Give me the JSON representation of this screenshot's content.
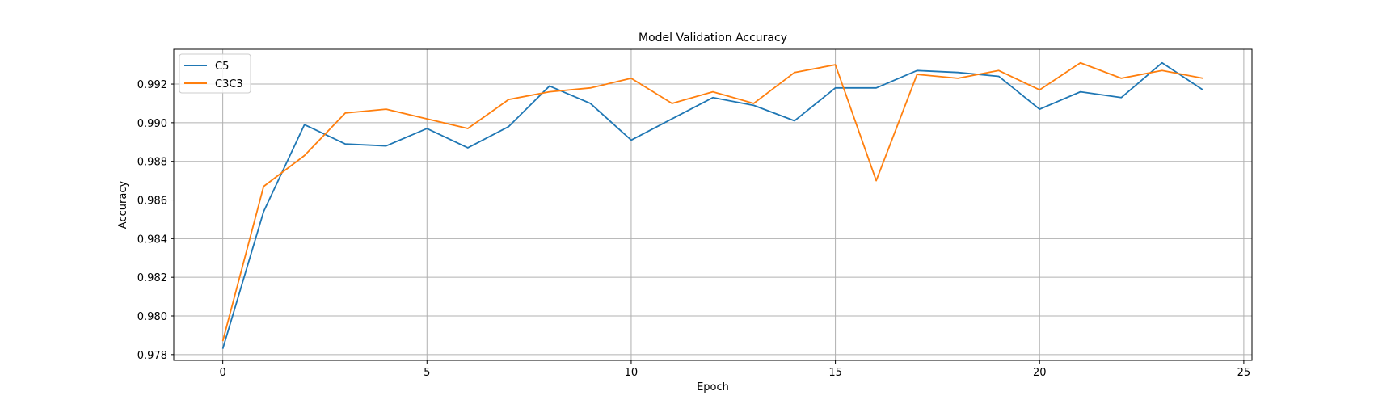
{
  "chart_data": {
    "type": "line",
    "title": "Model Validation Accuracy",
    "xlabel": "Epoch",
    "ylabel": "Accuracy",
    "xlim": [
      -1.2,
      25.2
    ],
    "ylim": [
      0.9777,
      0.9938
    ],
    "xticks": [
      0,
      5,
      10,
      15,
      20,
      25
    ],
    "xtick_labels": [
      "0",
      "5",
      "10",
      "15",
      "20",
      "25"
    ],
    "yticks": [
      0.978,
      0.98,
      0.982,
      0.984,
      0.986,
      0.988,
      0.99,
      0.992
    ],
    "ytick_labels": [
      "0.978",
      "0.980",
      "0.982",
      "0.984",
      "0.986",
      "0.988",
      "0.990",
      "0.992"
    ],
    "grid": true,
    "legend_position": "upper-left",
    "x": [
      0,
      1,
      2,
      3,
      4,
      5,
      6,
      7,
      8,
      9,
      10,
      11,
      12,
      13,
      14,
      15,
      16,
      17,
      18,
      19,
      20,
      21,
      22,
      23,
      24
    ],
    "series": [
      {
        "name": "C5",
        "color": "#1f77b4",
        "values": [
          0.9783,
          0.9854,
          0.9899,
          0.9889,
          0.9888,
          0.9897,
          0.9887,
          0.9898,
          0.9919,
          0.991,
          0.9891,
          0.9902,
          0.9913,
          0.9909,
          0.9901,
          0.9918,
          0.9918,
          0.9927,
          0.9926,
          0.9924,
          0.9907,
          0.9916,
          0.9913,
          0.9931,
          0.9917
        ]
      },
      {
        "name": "C3C3",
        "color": "#ff7f0e",
        "values": [
          0.9787,
          0.9867,
          0.9883,
          0.9905,
          0.9907,
          0.9902,
          0.9897,
          0.9912,
          0.9916,
          0.9918,
          0.9923,
          0.991,
          0.9916,
          0.991,
          0.9926,
          0.993,
          0.987,
          0.9925,
          0.9923,
          0.9927,
          0.9917,
          0.9931,
          0.9923,
          0.9927,
          0.9923
        ]
      }
    ]
  }
}
